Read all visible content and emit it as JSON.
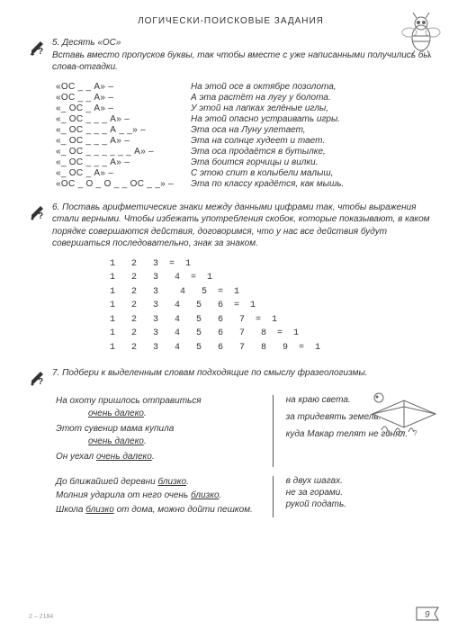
{
  "title": "ЛОГИЧЕСКИ-ПОИСКОВЫЕ ЗАДАНИЯ",
  "task5": {
    "num": "5.",
    "title": "Десять «ОС»",
    "text": "Вставь вместо пропусков буквы, так чтобы вместе с уже написанными получились бы слова-отгадки.",
    "rows": [
      {
        "left": "«ОС _ _ А» –",
        "right": "На этой осе в октябре позолота,"
      },
      {
        "left": "«ОС _ _ А» –",
        "right": "А эта растёт на лугу у болота."
      },
      {
        "left": "«_ ОС _ А» –",
        "right": "У этой на лапках зелёные иглы,"
      },
      {
        "left": "«_ ОС _ _ _ А» –",
        "right": "На этой опасно устраивать игры."
      },
      {
        "left": "«_ ОС _ _ _ А _ _» –",
        "right": "Эта оса на Луну улетает,"
      },
      {
        "left": "«_ ОС _ _ _ А» –",
        "right": "Эта на солнце худеет и тает."
      },
      {
        "left": "«_ ОС _ _ _ _ _ _ А» –",
        "right": "Эта оса продаётся в бутылке,"
      },
      {
        "left": "«_ ОС _ _ _ А» –",
        "right": "Эта боится горчицы и вилки."
      },
      {
        "left": "«_ ОС _ А» –",
        "right": "С этою спит в колыбели малыш,"
      },
      {
        "left": "«ОС _ О _ О _ _ ОС _ _» –",
        "right": "Эта по классу крадётся, как мышь."
      }
    ]
  },
  "task6": {
    "num": "6.",
    "text": "Поставь арифметические знаки между данными цифрами так, чтобы выражения стали верными. Чтобы избежать употребления скобок, которые показывают, в каком порядке совершаются действия, договоримся, что у нас все действия будут совершаться последовательно, знак за знаком.",
    "math": "1   2   3  =  1\n1   2   3   4  =  1\n1   2   3    4   5  =  1\n1   2   3   4   5   6  =  1\n1   2   3   4   5   6   7  =  1\n1   2   3   4   5   6   7   8  =  1\n1   2   3   4   5   6   7   8   9  =  1"
  },
  "task7": {
    "num": "7.",
    "text": "Подбери к выделенным словам подходящие по смыслу фразеологизмы.",
    "group1": {
      "left": [
        "На охоту пришлось отправиться",
        "Этот сувенир мама купила",
        "Он уехал"
      ],
      "u": "очень далеко",
      "right": [
        "на краю света.",
        "за тридевять земель.",
        "куда Макар телят не гонял."
      ]
    },
    "group2": {
      "left": [
        "До ближайшей деревни",
        "Молния ударила от него очень",
        "Школа близко от дома, можно дойти пешком."
      ],
      "u": "близко",
      "right": [
        "в двух шагах.",
        "не за горами.",
        "рукой подать."
      ]
    }
  },
  "footer_code": "2 – 2184",
  "page_number": "9",
  "colors": {
    "text": "#333333",
    "bg": "#ffffff"
  }
}
